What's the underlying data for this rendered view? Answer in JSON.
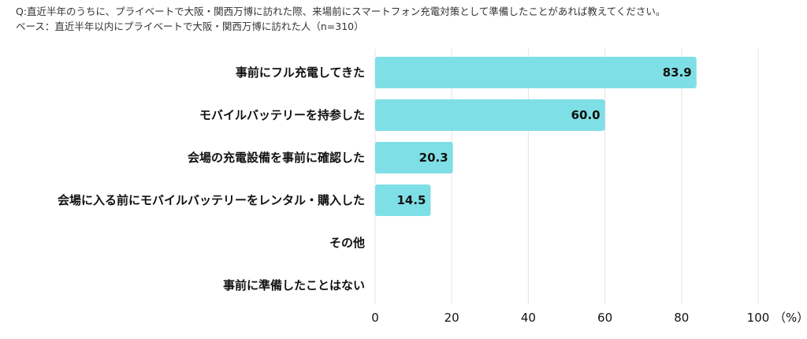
{
  "header": {
    "question": "Q:直近半年のうちに、プライベートで大阪・関西万博に訪れた際、来場前にスマートフォン充電対策として準備したことがあれば教えてください。",
    "base": "ベース：直近半年以内にプライベートで大阪・関西万博に訪れた人（n=310）"
  },
  "chart_data": {
    "type": "bar",
    "orientation": "horizontal",
    "categories": [
      "事前にフル充電してきた",
      "モバイルバッテリーを持参した",
      "会場の充電設備を事前に確認した",
      "会場に入る前にモバイルバッテリーをレンタル・購入した",
      "その他",
      "事前に準備したことはない"
    ],
    "values": [
      83.9,
      60.0,
      20.3,
      14.5,
      null,
      null
    ],
    "value_labels": [
      "83.9",
      "60.0",
      "20.3",
      "14.5",
      "",
      ""
    ],
    "xlim": [
      0,
      100
    ],
    "xticks": [
      0,
      20,
      40,
      60,
      80,
      100
    ],
    "xtick_labels": [
      "0",
      "20",
      "40",
      "60",
      "80",
      "100"
    ],
    "xunit": "（%）",
    "grid": true,
    "bar_color": "#7fdfe6"
  }
}
